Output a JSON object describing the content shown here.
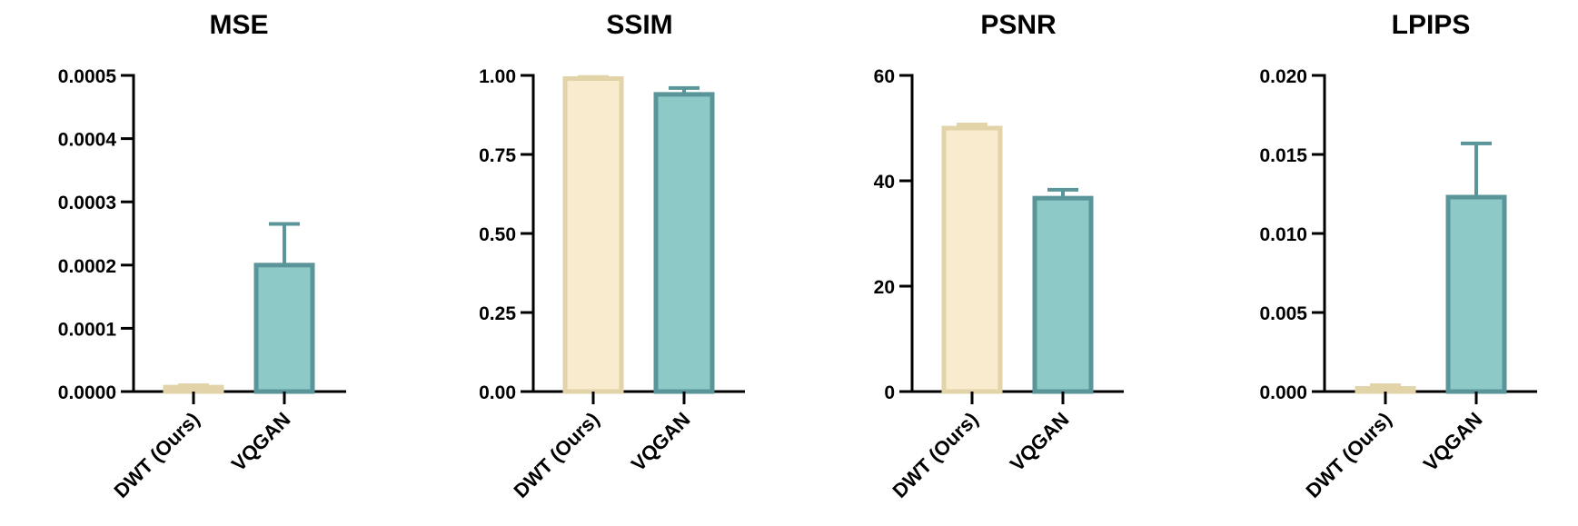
{
  "colors": {
    "dwt_fill": "#F8EBCE",
    "dwt_stroke": "#E2D3A9",
    "vqgan_fill": "#8DCAC7",
    "vqgan_stroke": "#5A9699"
  },
  "chart_data": [
    {
      "type": "bar",
      "title": "MSE",
      "categories": [
        "DWT (Ours)",
        "VQGAN"
      ],
      "values": [
        7e-06,
        0.0002
      ],
      "error": [
        3e-06,
        6.5e-05
      ],
      "ylim": [
        0,
        0.0005
      ],
      "yticks": [
        0,
        0.0001,
        0.0002,
        0.0003,
        0.0004,
        0.0005
      ],
      "ytick_labels": [
        "0.0000",
        "0.0001",
        "0.0002",
        "0.0003",
        "0.0004",
        "0.0005"
      ]
    },
    {
      "type": "bar",
      "title": "SSIM",
      "categories": [
        "DWT (Ours)",
        "VQGAN"
      ],
      "values": [
        0.99,
        0.94
      ],
      "error": [
        0.005,
        0.02
      ],
      "ylim": [
        0,
        1
      ],
      "yticks": [
        0,
        0.25,
        0.5,
        0.75,
        1
      ],
      "ytick_labels": [
        "0.00",
        "0.25",
        "0.50",
        "0.75",
        "1.00"
      ]
    },
    {
      "type": "bar",
      "title": "PSNR",
      "categories": [
        "DWT (Ours)",
        "VQGAN"
      ],
      "values": [
        50,
        36.7
      ],
      "error": [
        0.7,
        1.6
      ],
      "ylim": [
        0,
        60
      ],
      "yticks": [
        0,
        20,
        40,
        60
      ],
      "ytick_labels": [
        "0",
        "20",
        "40",
        "60"
      ]
    },
    {
      "type": "bar",
      "title": "LPIPS",
      "categories": [
        "DWT (Ours)",
        "VQGAN"
      ],
      "values": [
        0.0002,
        0.0123
      ],
      "error": [
        0.0002,
        0.0034
      ],
      "ylim": [
        0,
        0.02
      ],
      "yticks": [
        0,
        0.005,
        0.01,
        0.015,
        0.02
      ],
      "ytick_labels": [
        "0.000",
        "0.005",
        "0.010",
        "0.015",
        "0.020"
      ]
    }
  ]
}
